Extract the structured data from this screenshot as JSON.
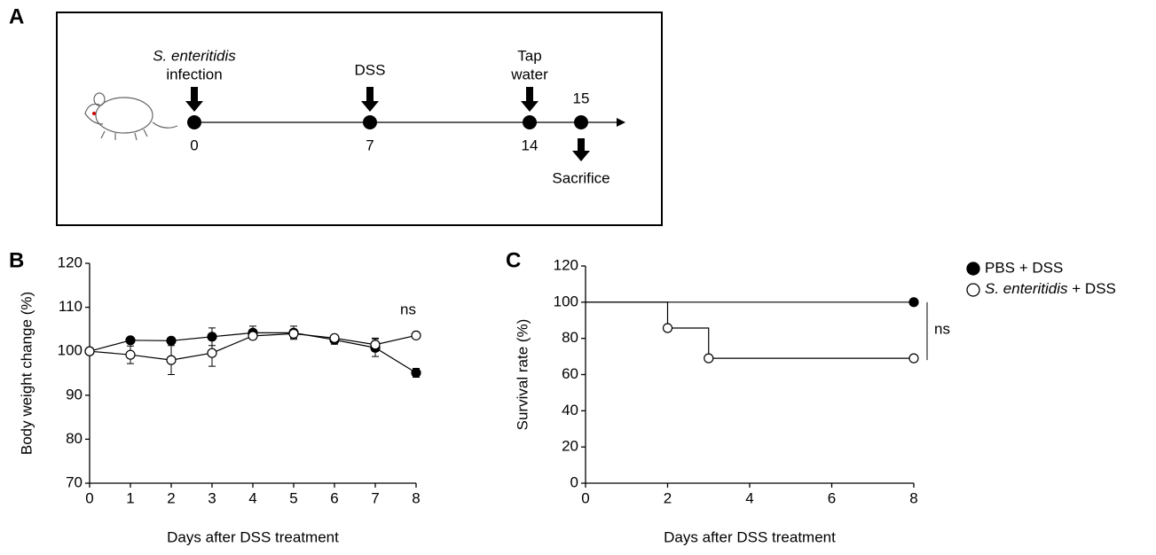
{
  "panel_labels": [
    "A",
    "B",
    "C"
  ],
  "timeline": {
    "events": [
      {
        "label": [
          "S. enteritidis",
          "infection"
        ],
        "day": 0
      },
      {
        "label": [
          "DSS"
        ],
        "day": 7
      },
      {
        "label": [
          "Tap",
          "water"
        ],
        "day": 14
      },
      {
        "label": [
          "Sacrifice"
        ],
        "day": 15
      }
    ]
  },
  "chart_data": [
    {
      "type": "line",
      "x_label": "Days after DSS treatment",
      "y_label": "Body weight change (%)",
      "x": [
        0,
        1,
        2,
        3,
        4,
        5,
        6,
        7,
        8
      ],
      "xlim": [
        0,
        8
      ],
      "xticks": [
        0,
        1,
        2,
        3,
        4,
        5,
        6,
        7,
        8
      ],
      "ylim": [
        70,
        120
      ],
      "yticks": [
        70,
        80,
        90,
        100,
        110,
        120
      ],
      "annotation": "ns",
      "series": [
        {
          "color": "#000000",
          "marker": "filled",
          "values": [
            100,
            102.5,
            102.4,
            103.3,
            104.2,
            104.2,
            102.6,
            100.8,
            95.1
          ],
          "errors": [
            0,
            0.5,
            0.5,
            2,
            1.5,
            1.5,
            1,
            2,
            1
          ]
        },
        {
          "color": "#000000",
          "marker": "open",
          "values": [
            100,
            99.2,
            98.0,
            99.6,
            103.5,
            104.0,
            103.0,
            101.5,
            103.6
          ],
          "errors": [
            0,
            2,
            3.3,
            3,
            0.5,
            1,
            0.5,
            1.5,
            0
          ]
        }
      ]
    },
    {
      "type": "step",
      "x_label": "Days after DSS treatment",
      "y_label": "Survival rate (%)",
      "xlim": [
        0,
        8
      ],
      "xticks": [
        0,
        2,
        4,
        6,
        8
      ],
      "ylim": [
        0,
        120
      ],
      "yticks": [
        0,
        20,
        40,
        60,
        80,
        100,
        120
      ],
      "annotation": "ns",
      "series": [
        {
          "name": "PBS + DSS",
          "color": "#000000",
          "marker": "filled",
          "x": [
            0,
            8
          ],
          "values": [
            100,
            100
          ]
        },
        {
          "name": "S. enteritidis + DSS",
          "color": "#000000",
          "marker": "open",
          "x": [
            0,
            2,
            3,
            8
          ],
          "values": [
            100,
            85.7,
            69,
            69
          ]
        }
      ]
    }
  ]
}
